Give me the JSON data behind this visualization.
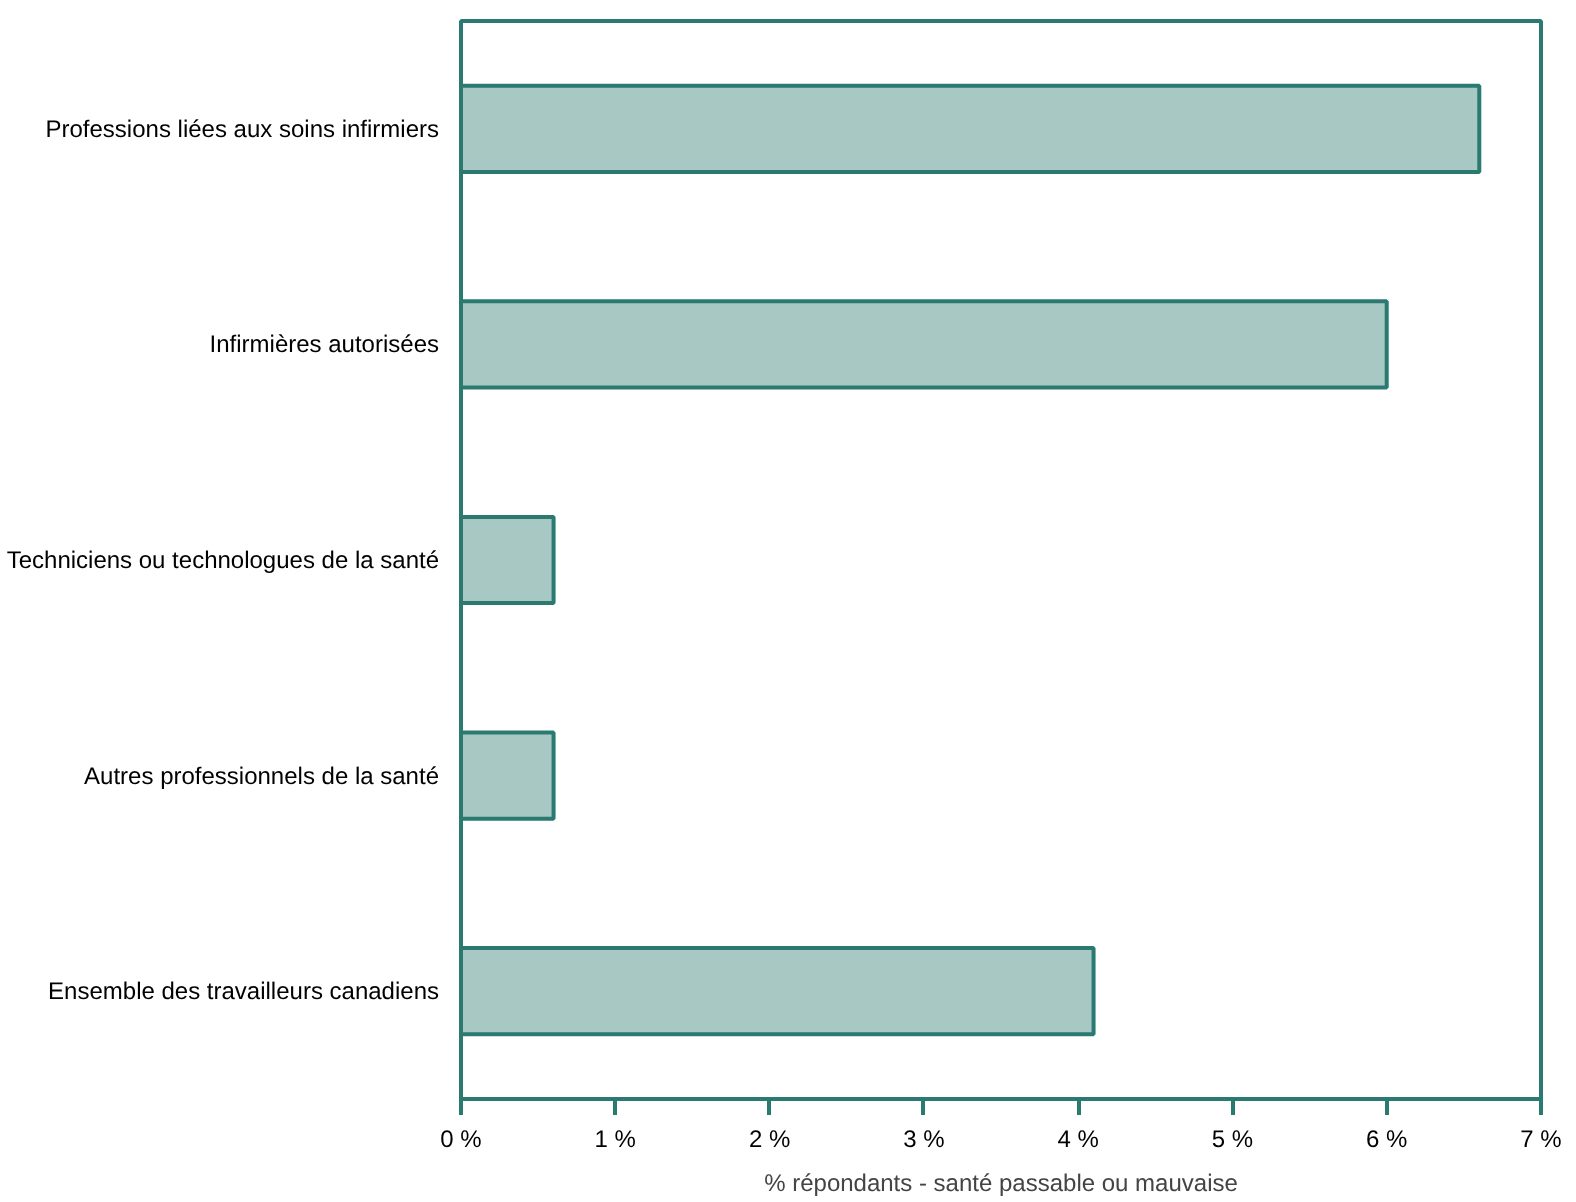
{
  "chart_data": {
    "type": "bar",
    "orientation": "horizontal",
    "xlabel": "% répondants - santé passable ou mauvaise",
    "categories": [
      "Professions liées aux soins infirmiers",
      "Infirmières autorisées",
      "Techniciens ou technologues de la santé",
      "Autres professionnels de la santé",
      "Ensemble des travailleurs canadiens"
    ],
    "values": [
      6.6,
      6.0,
      0.6,
      0.6,
      4.1
    ],
    "color": "#a8c8c4",
    "xlim": [
      0,
      7
    ],
    "xticks": [
      {
        "value": 0,
        "label": "0 %"
      },
      {
        "value": 1,
        "label": "1 %"
      },
      {
        "value": 2,
        "label": "2 %"
      },
      {
        "value": 3,
        "label": "3 %"
      },
      {
        "value": 4,
        "label": "4 %"
      },
      {
        "value": 5,
        "label": "5 %"
      },
      {
        "value": 6,
        "label": "6 %"
      },
      {
        "value": 7,
        "label": "7 %"
      }
    ]
  }
}
